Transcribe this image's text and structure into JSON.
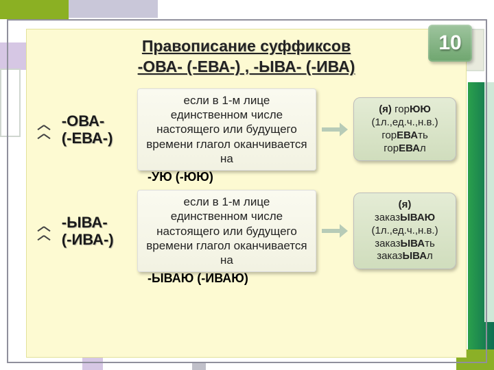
{
  "page_number": "10",
  "title_line1": "Правописание суффиксов",
  "title_line2": "-ОВА- (-ЕВА-) , -ЫВА- (-ИВА)",
  "rows": [
    {
      "suffix_l1": "-ОВА-",
      "suffix_l2": "(-ЕВА-)",
      "rule": "если в 1-м лице единственном числе настоящего или будущего времени глагол оканчивается на",
      "rule_tail": "-УЮ (-ЮЮ)",
      "example_html": "<b>(я)</b> гор<b>ЮЮ</b><br>(1л.,ед.ч.,н.в.)<br>гор<b>ЕВА</b>ть<br>гор<b>ЕВА</b>л"
    },
    {
      "suffix_l1": "-ЫВА-",
      "suffix_l2": "(-ИВА-)",
      "rule": "если в 1-м лице единственном числе настоящего или будущего времени глагол оканчивается на",
      "rule_tail": "-ЫВАЮ (-ИВАЮ)",
      "example_html": "<b>(я)</b><br>заказ<b>ЫВАЮ</b><br>(1л.,ед.ч.,н.в.)<br>заказ<b>ЫВА</b>ть<br>заказ<b>ЫВА</b>л"
    }
  ],
  "colors": {
    "slide_bg": "#fdfad2",
    "badge_grad_top": "#9ec49e",
    "badge_grad_bot": "#6fa66f",
    "example_grad_top": "#e4ecd5",
    "example_grad_bot": "#d0ddbd",
    "arrow": "#b7cbb7"
  }
}
